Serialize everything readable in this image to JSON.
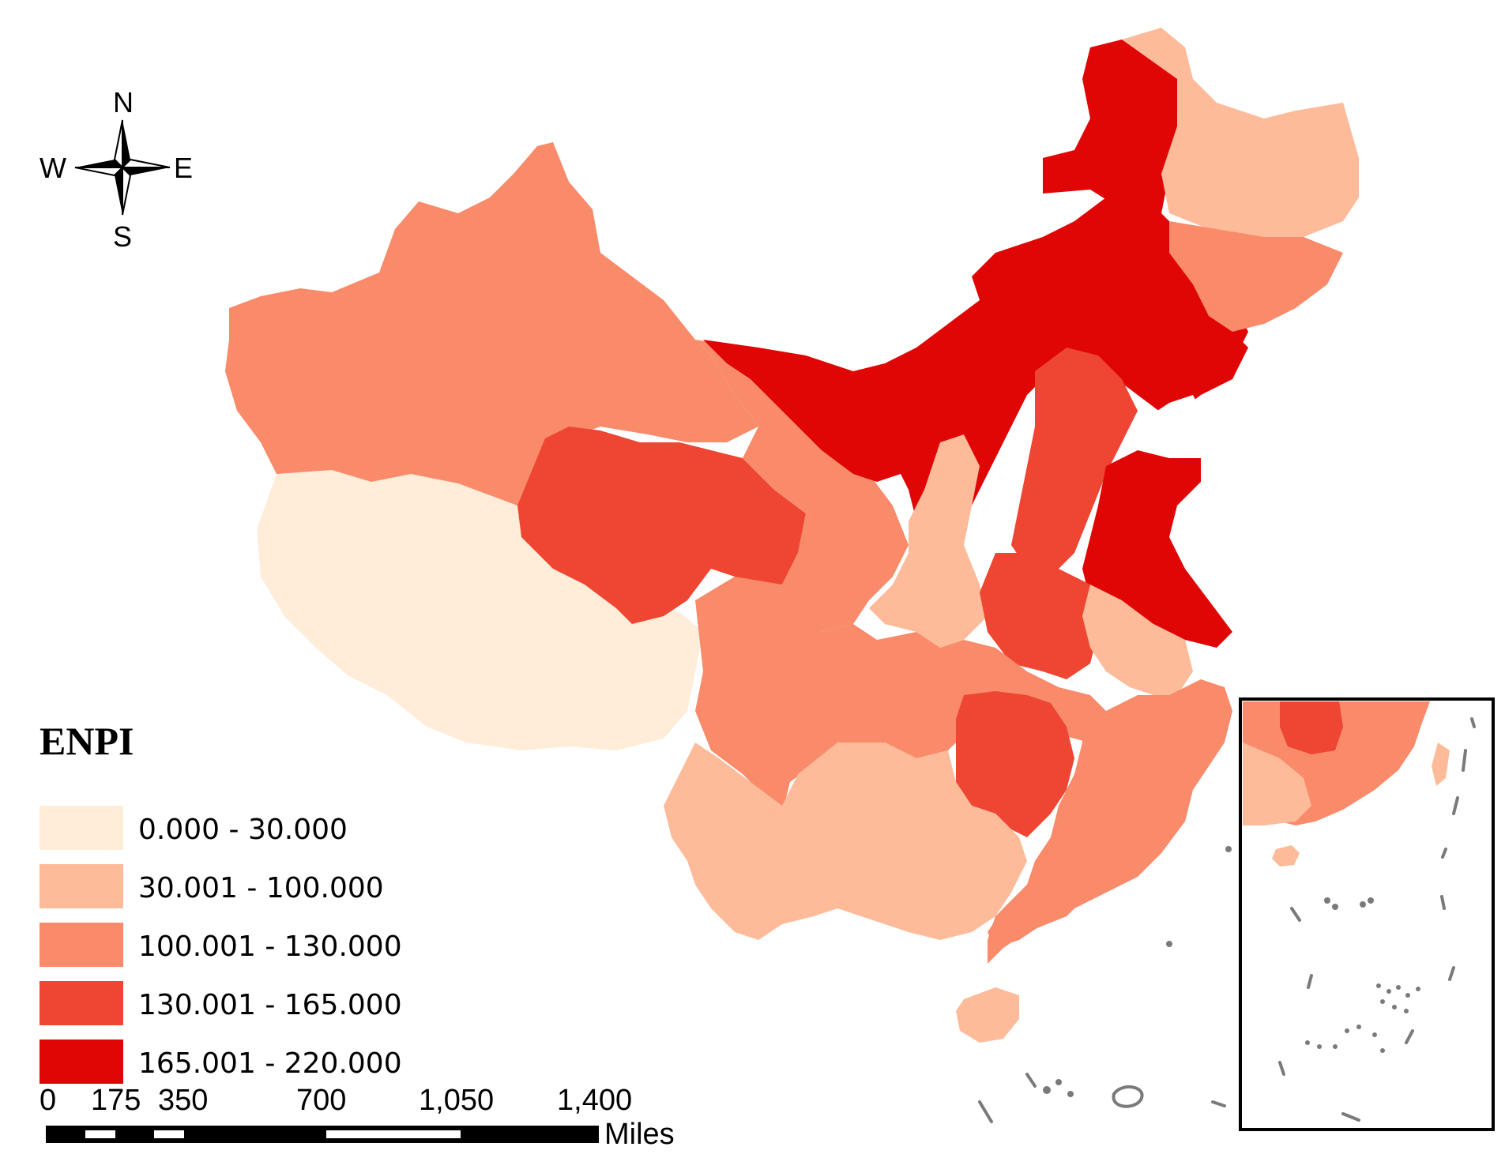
{
  "legend": {
    "title": "ENPI",
    "classes": [
      {
        "label": "0.000 - 30.000",
        "color": "#ffecd9"
      },
      {
        "label": "30.001 - 100.000",
        "color": "#fdbb9a"
      },
      {
        "label": "100.001 - 130.000",
        "color": "#f98a6a"
      },
      {
        "label": "130.001 - 165.000",
        "color": "#ee4632"
      },
      {
        "label": "165.001 - 220.000",
        "color": "#e00606"
      }
    ]
  },
  "compass": {
    "north": "N",
    "south": "S",
    "east": "E",
    "west": "W"
  },
  "scale_bar": {
    "ticks": [
      "0",
      "175",
      "350",
      "700",
      "1,050",
      "1,400"
    ],
    "unit": "Miles"
  }
}
